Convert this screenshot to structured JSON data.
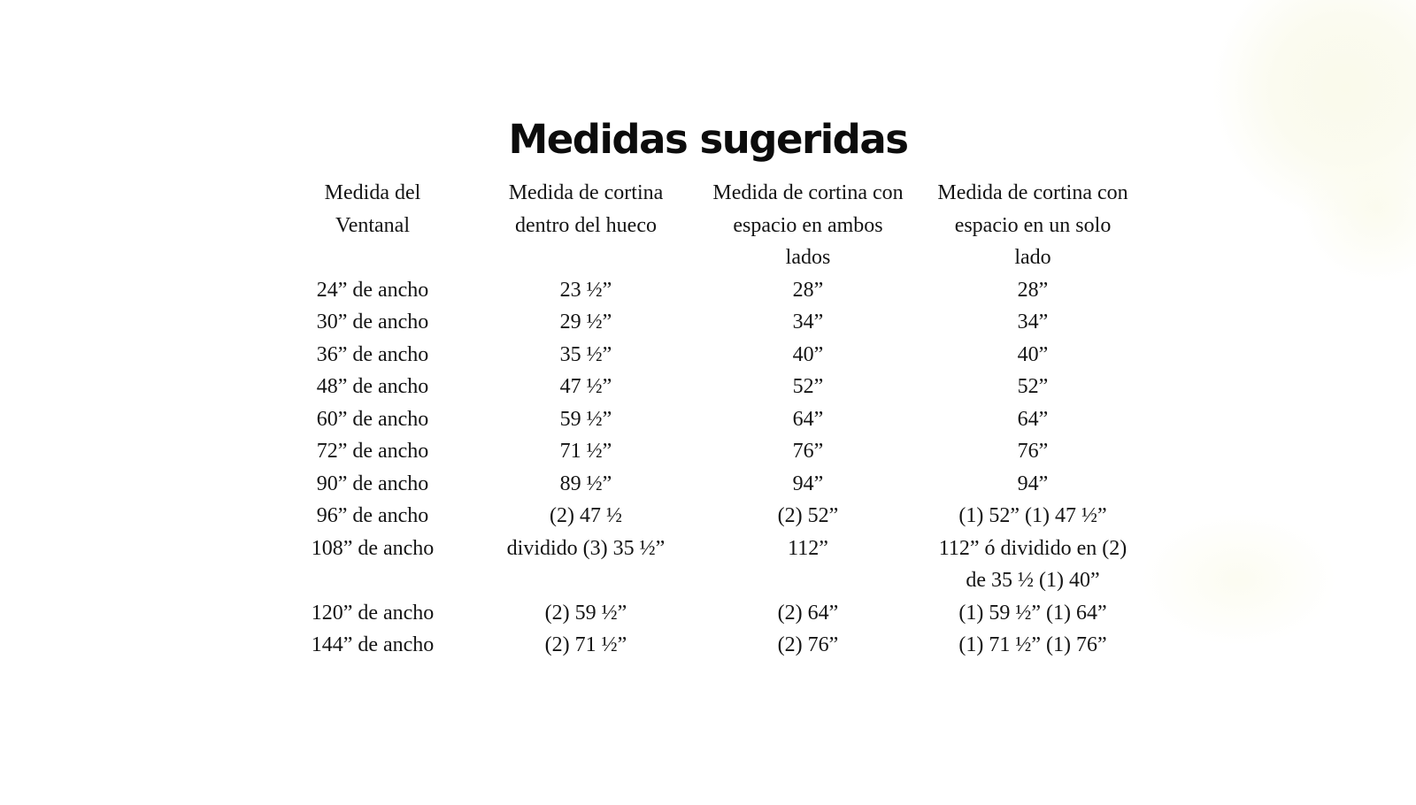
{
  "page": {
    "title": "Medidas sugeridas"
  },
  "colors": {
    "background": "#ffffff",
    "text": "#141414",
    "title_text": "#0c0c0c",
    "blob_cream": "#fafaeb"
  },
  "table": {
    "columns": [
      "Medida del\nVentanal",
      "Medida de cortina\ndentro del hueco",
      "Medida de cortina con\nespacio en ambos\nlados",
      "Medida de cortina con\nespacio en un solo\nlado"
    ],
    "rows": [
      [
        "24” de ancho",
        "23 ½”",
        "28”",
        "28”"
      ],
      [
        "30” de ancho",
        "29 ½”",
        "34”",
        "34”"
      ],
      [
        "36” de ancho",
        "35 ½”",
        "40”",
        "40”"
      ],
      [
        "48” de ancho",
        "47 ½”",
        "52”",
        "52”"
      ],
      [
        "60” de ancho",
        "59 ½”",
        "64”",
        "64”"
      ],
      [
        "72” de ancho",
        "71 ½”",
        "76”",
        "76”"
      ],
      [
        "90” de ancho",
        "89 ½”",
        "94”",
        "94”"
      ],
      [
        "96” de ancho",
        "(2) 47 ½",
        "(2) 52”",
        "(1) 52” (1) 47 ½”"
      ],
      [
        "108” de ancho",
        "dividido (3) 35 ½”",
        "112”",
        "112” ó dividido en (2)\nde 35 ½ (1) 40”"
      ],
      [
        "120” de ancho",
        "(2) 59 ½”",
        "(2) 64”",
        "(1) 59 ½” (1) 64”"
      ],
      [
        "144” de ancho",
        "(2) 71 ½”",
        "(2) 76”",
        "(1) 71 ½” (1) 76”"
      ]
    ]
  }
}
